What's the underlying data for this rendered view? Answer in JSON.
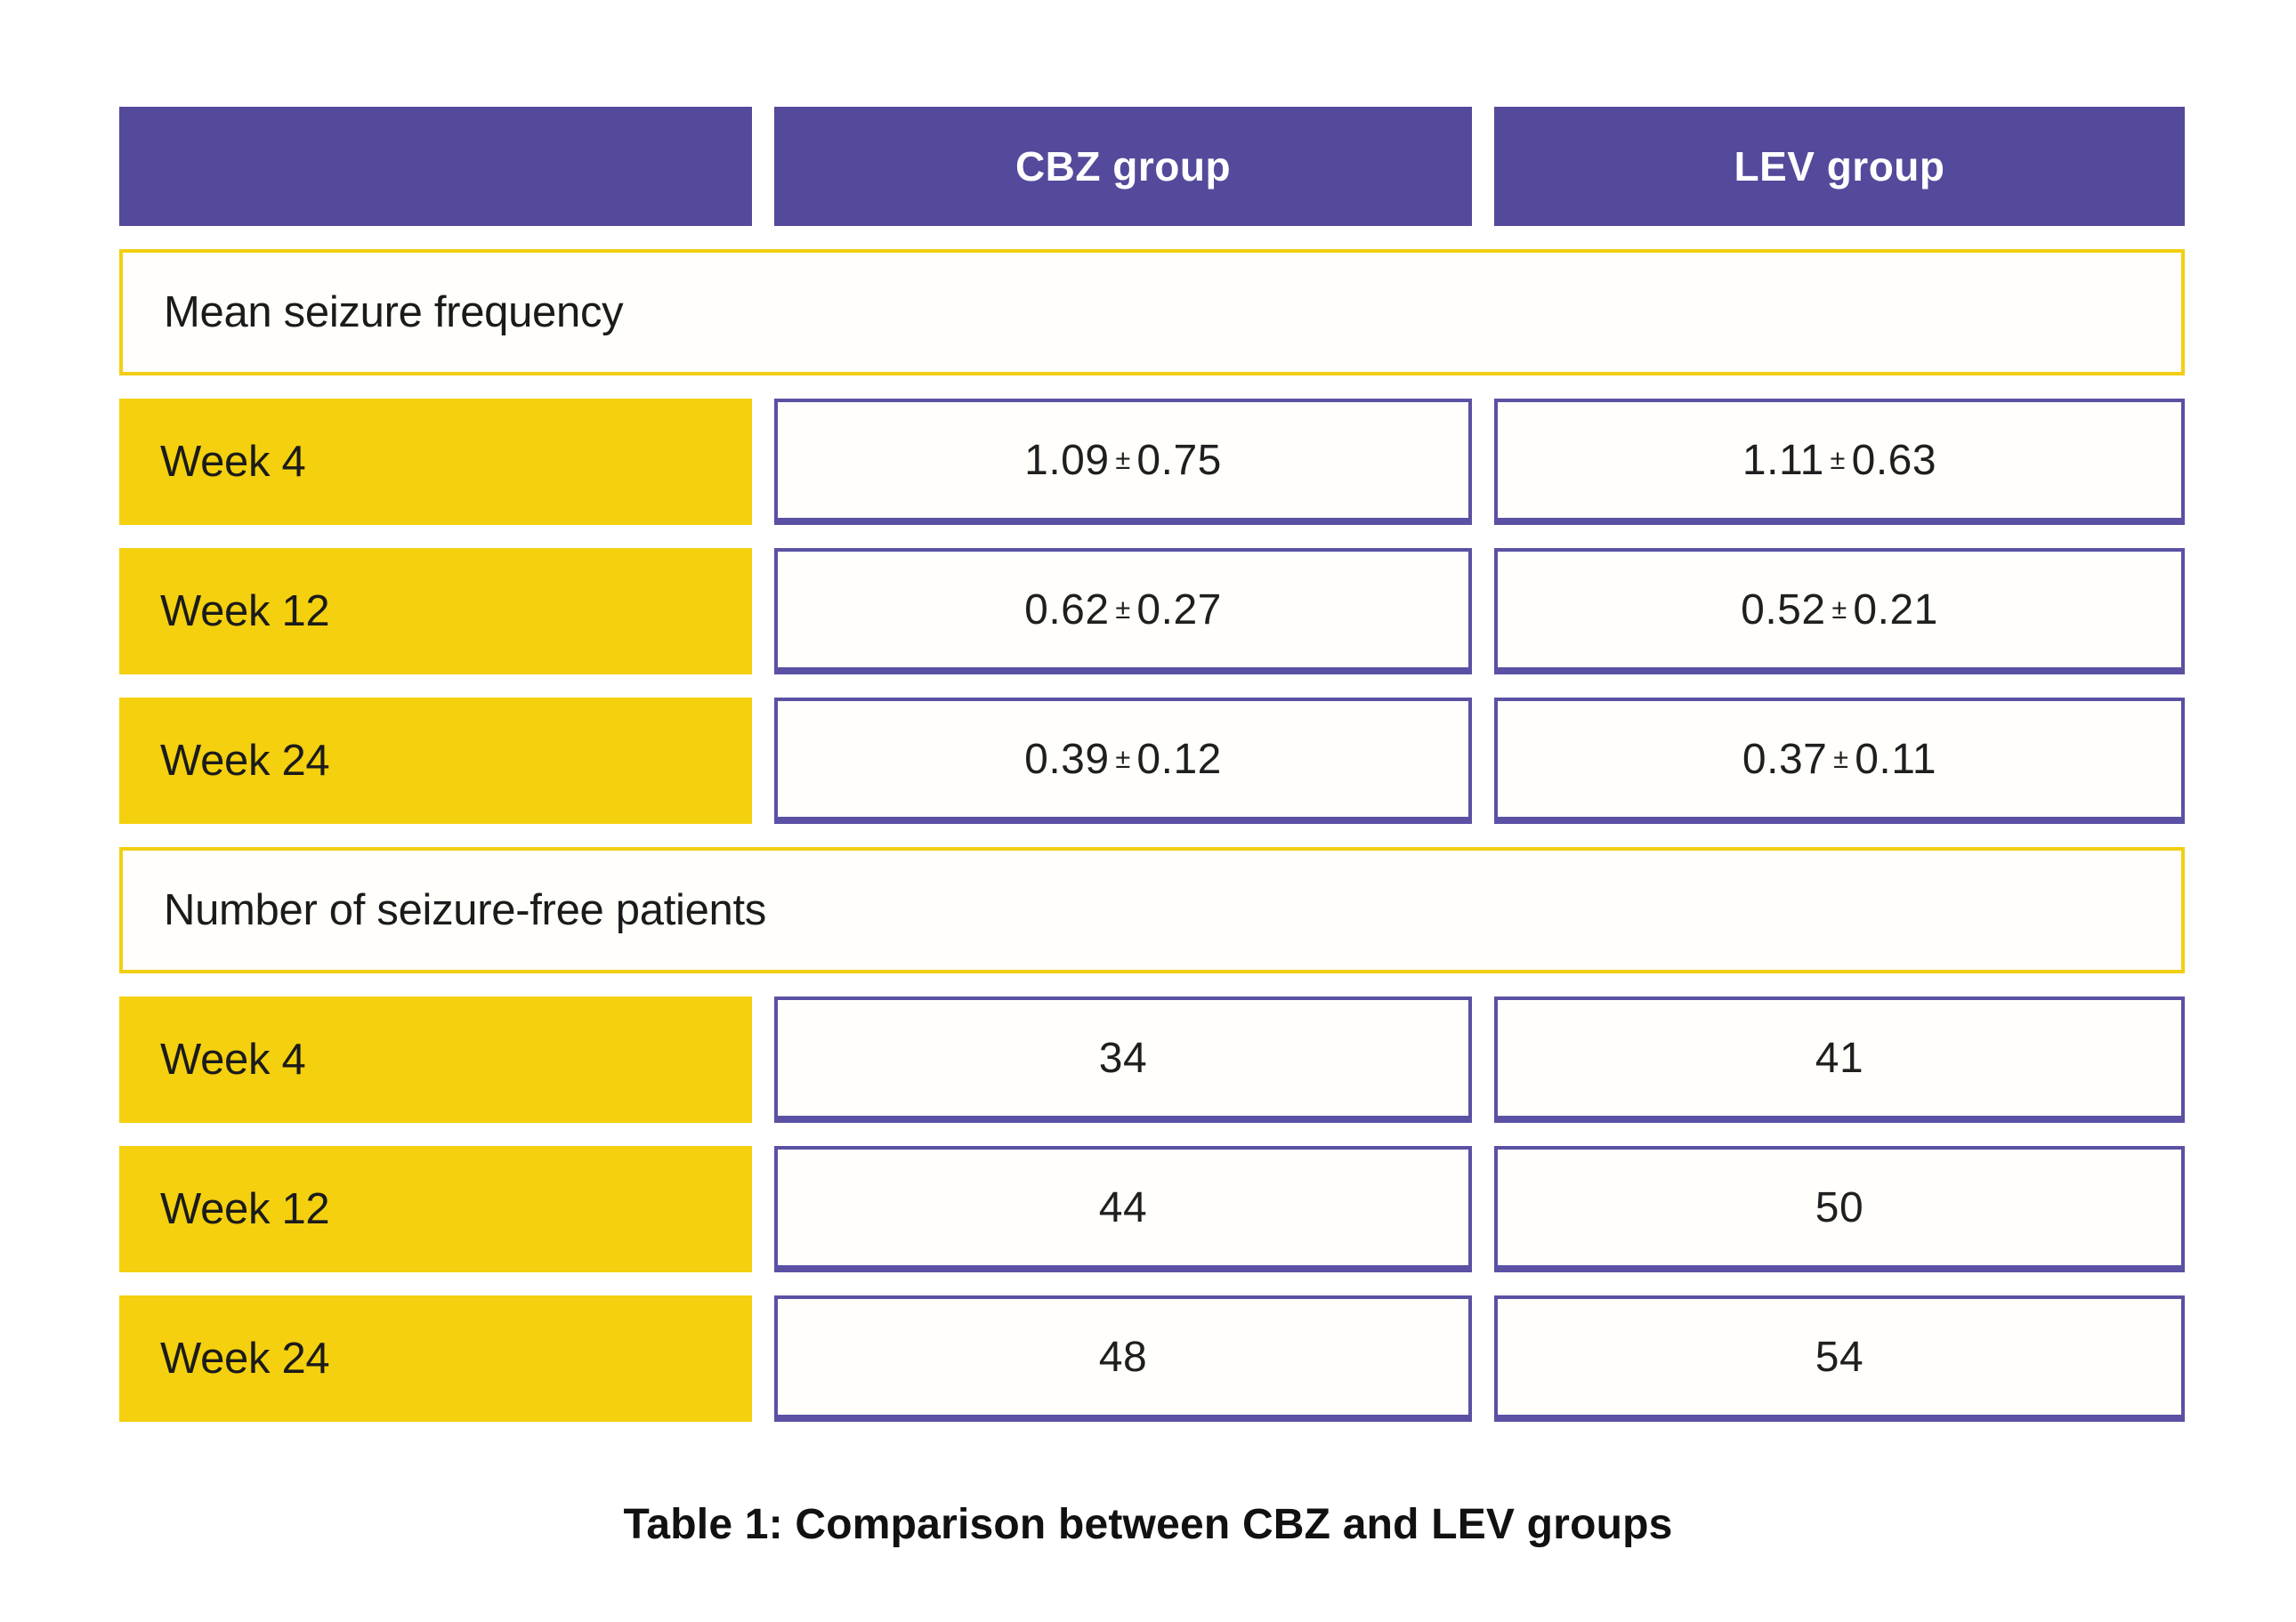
{
  "chart_data": {
    "type": "table",
    "columns": [
      "",
      "CBZ group",
      "LEV group"
    ],
    "sections": [
      {
        "title": "Mean seizure frequency",
        "rows": [
          {
            "label": "Week 4",
            "cbz": "1.09 ± 0.75",
            "lev": "1.11 ± 0.63"
          },
          {
            "label": "Week 12",
            "cbz": "0.62 ± 0.27",
            "lev": "0.52 ± 0.21"
          },
          {
            "label": "Week 24",
            "cbz": "0.39 ± 0.12",
            "lev": "0.37 ± 0.11"
          }
        ]
      },
      {
        "title": "Number of seizure-free patients",
        "rows": [
          {
            "label": "Week 4",
            "cbz": "34",
            "lev": "41"
          },
          {
            "label": "Week 12",
            "cbz": "44",
            "lev": "50"
          },
          {
            "label": "Week 24",
            "cbz": "48",
            "lev": "54"
          }
        ]
      }
    ],
    "numeric": {
      "mean_seizure_frequency": {
        "weeks": [
          4,
          12,
          24
        ],
        "CBZ": {
          "mean": [
            1.09,
            0.62,
            0.39
          ],
          "sd": [
            0.75,
            0.27,
            0.12
          ]
        },
        "LEV": {
          "mean": [
            1.11,
            0.52,
            0.37
          ],
          "sd": [
            0.63,
            0.21,
            0.11
          ]
        }
      },
      "seizure_free_patients": {
        "weeks": [
          4,
          12,
          24
        ],
        "CBZ": [
          34,
          44,
          48
        ],
        "LEV": [
          41,
          50,
          54
        ]
      }
    },
    "caption": "Table 1: Comparison between CBZ and LEV groups"
  },
  "colors": {
    "header_purple": "#544A9B",
    "cell_border_purple": "#5A51A4",
    "row_label_yellow": "#F4D00E",
    "section_border_yellow": "#F2CE12",
    "text_dark": "#1d1d1d",
    "header_text": "#ffffff",
    "background": "#ffffff"
  }
}
